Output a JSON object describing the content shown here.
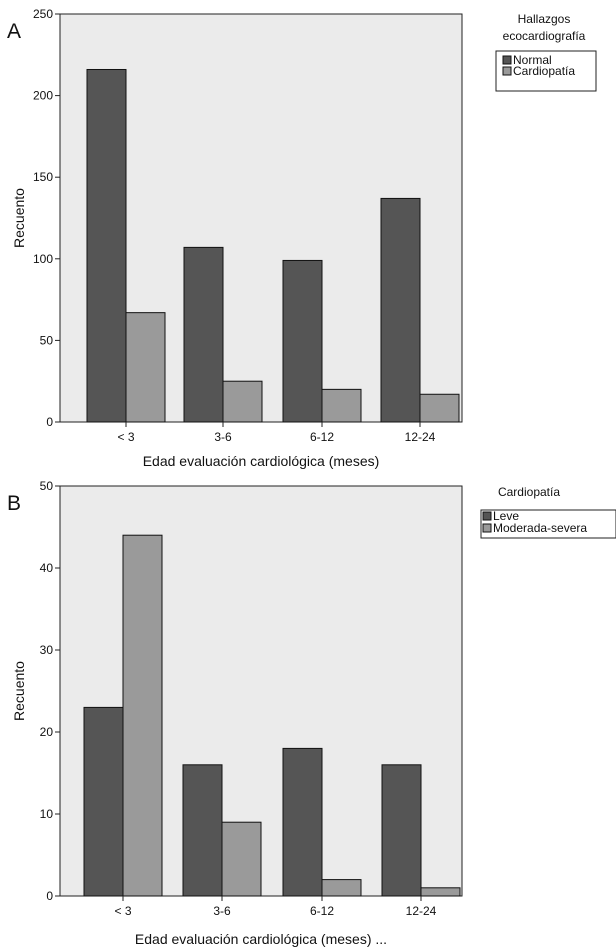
{
  "colors": {
    "background": "#ffffff",
    "plot_area": "#ebebeb",
    "series_dark": "#555555",
    "series_light": "#9a9a9a",
    "bar_stroke": "#111111"
  },
  "chart_data": [
    {
      "panel_label": "A",
      "type": "bar",
      "categories": [
        "< 3",
        "3-6",
        "6-12",
        "12-24"
      ],
      "series": [
        {
          "name": "Normal",
          "values": [
            216,
            107,
            99,
            137
          ]
        },
        {
          "name": "Cardiopatía",
          "values": [
            67,
            25,
            20,
            17
          ]
        }
      ],
      "xlabel": "Edad evaluación cardiológica (meses)",
      "ylabel": "Recuento",
      "ylim": [
        0,
        250
      ],
      "yticks": [
        0,
        50,
        100,
        150,
        200,
        250
      ],
      "legend_title": "Hallazgos ecocardiografía",
      "legend_position": "right",
      "grid": false
    },
    {
      "panel_label": "B",
      "type": "bar",
      "categories": [
        "< 3",
        "3-6",
        "6-12",
        "12-24"
      ],
      "series": [
        {
          "name": "Leve",
          "values": [
            23,
            16,
            18,
            16
          ]
        },
        {
          "name": "Moderada-severa",
          "values": [
            44,
            9,
            2,
            1
          ]
        }
      ],
      "xlabel": "Edad evaluación cardiológica (meses) ...",
      "ylabel": "Recuento",
      "ylim": [
        0,
        50
      ],
      "yticks": [
        0,
        10,
        20,
        30,
        40,
        50
      ],
      "legend_title": "Cardiopatía",
      "legend_position": "right",
      "grid": false
    }
  ]
}
